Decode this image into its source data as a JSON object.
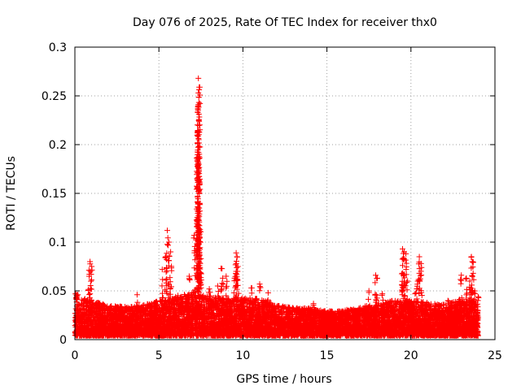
{
  "chart_data": {
    "type": "scatter",
    "title": "Day 076 of 2025, Rate Of TEC Index for receiver thx0",
    "xlabel": "GPS time / hours",
    "ylabel": "ROTI / TECUs",
    "xlim": [
      0,
      25
    ],
    "ylim": [
      0,
      0.3
    ],
    "xticks": [
      0,
      5,
      10,
      15,
      20,
      25
    ],
    "xtick_labels": [
      "0",
      "5",
      "10",
      "15",
      "20",
      "25"
    ],
    "yticks": [
      0,
      0.05,
      0.1,
      0.15,
      0.2,
      0.25,
      0.3
    ],
    "ytick_labels": [
      "0",
      "0.05",
      "0.1",
      "0.15",
      "0.2",
      "0.25",
      "0.3"
    ],
    "grid": true,
    "marker": "plus",
    "color": "#ff0000",
    "series": [
      {
        "name": "ROTI",
        "baseline_envelope": [
          [
            0.0,
            0.045
          ],
          [
            1.0,
            0.04
          ],
          [
            2.0,
            0.035
          ],
          [
            3.0,
            0.034
          ],
          [
            4.0,
            0.035
          ],
          [
            5.0,
            0.04
          ],
          [
            6.0,
            0.045
          ],
          [
            7.0,
            0.048
          ],
          [
            8.0,
            0.045
          ],
          [
            9.0,
            0.042
          ],
          [
            10.0,
            0.043
          ],
          [
            11.0,
            0.042
          ],
          [
            12.0,
            0.036
          ],
          [
            13.0,
            0.033
          ],
          [
            14.0,
            0.032
          ],
          [
            15.0,
            0.029
          ],
          [
            16.0,
            0.03
          ],
          [
            17.0,
            0.033
          ],
          [
            18.0,
            0.038
          ],
          [
            19.0,
            0.04
          ],
          [
            20.0,
            0.04
          ],
          [
            21.0,
            0.038
          ],
          [
            22.0,
            0.036
          ],
          [
            23.0,
            0.042
          ],
          [
            24.0,
            0.04
          ]
        ],
        "spikes": [
          [
            0.05,
            0.047
          ],
          [
            0.15,
            0.046
          ],
          [
            0.9,
            0.08
          ],
          [
            1.0,
            0.075
          ],
          [
            0.85,
            0.065
          ],
          [
            3.7,
            0.046
          ],
          [
            5.2,
            0.072
          ],
          [
            5.5,
            0.112
          ],
          [
            5.6,
            0.1
          ],
          [
            5.4,
            0.085
          ],
          [
            5.7,
            0.09
          ],
          [
            6.8,
            0.065
          ],
          [
            7.1,
            0.107
          ],
          [
            7.25,
            0.134
          ],
          [
            7.3,
            0.171
          ],
          [
            7.3,
            0.212
          ],
          [
            7.3,
            0.214
          ],
          [
            7.35,
            0.241
          ],
          [
            7.35,
            0.253
          ],
          [
            7.4,
            0.259
          ],
          [
            7.35,
            0.268
          ],
          [
            7.4,
            0.139
          ],
          [
            7.4,
            0.135
          ],
          [
            7.45,
            0.113
          ],
          [
            7.5,
            0.083
          ],
          [
            7.45,
            0.074
          ],
          [
            8.0,
            0.052
          ],
          [
            8.5,
            0.055
          ],
          [
            8.8,
            0.063
          ],
          [
            9.0,
            0.065
          ],
          [
            9.6,
            0.089
          ],
          [
            9.65,
            0.085
          ],
          [
            9.7,
            0.075
          ],
          [
            9.6,
            0.07
          ],
          [
            9.5,
            0.063
          ],
          [
            8.7,
            0.073
          ],
          [
            10.5,
            0.053
          ],
          [
            11.0,
            0.057
          ],
          [
            11.5,
            0.048
          ],
          [
            14.2,
            0.037
          ],
          [
            17.5,
            0.05
          ],
          [
            17.9,
            0.066
          ],
          [
            18.0,
            0.063
          ],
          [
            18.3,
            0.047
          ],
          [
            19.5,
            0.093
          ],
          [
            19.6,
            0.09
          ],
          [
            19.7,
            0.088
          ],
          [
            19.5,
            0.076
          ],
          [
            19.6,
            0.067
          ],
          [
            19.8,
            0.06
          ],
          [
            20.5,
            0.085
          ],
          [
            20.6,
            0.078
          ],
          [
            20.5,
            0.068
          ],
          [
            20.4,
            0.06
          ],
          [
            20.3,
            0.048
          ],
          [
            22.2,
            0.04
          ],
          [
            23.0,
            0.066
          ],
          [
            23.3,
            0.063
          ],
          [
            23.6,
            0.085
          ],
          [
            23.65,
            0.08
          ],
          [
            23.7,
            0.068
          ],
          [
            23.5,
            0.06
          ],
          [
            23.8,
            0.05
          ],
          [
            24.0,
            0.044
          ]
        ]
      }
    ]
  }
}
